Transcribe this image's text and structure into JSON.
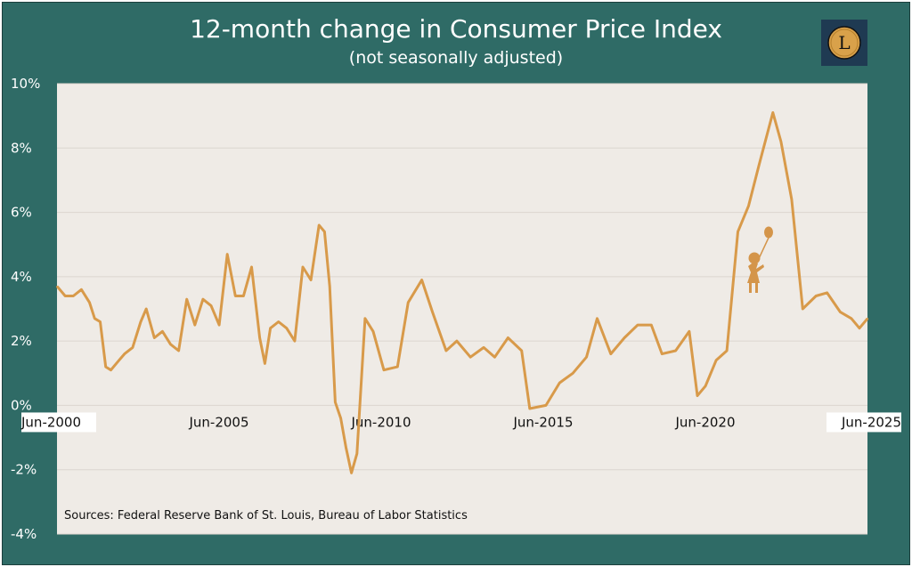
{
  "header": {
    "title": "12-month change in Consumer Price Index",
    "subtitle": "(not seasonally adjusted)",
    "logo_letter": "L"
  },
  "source_note": "Sources: Federal Reserve Bank of St. Louis, Bureau of Labor Statistics",
  "colors": {
    "frame": "#2f6b66",
    "plot_bg": "#efebe6",
    "line": "#d89a4a",
    "logo_bg": "#1f3a52",
    "logo_coin": "#d9a14a"
  },
  "icons": [
    "girl-with-balloon-icon",
    "logo-coin-icon"
  ],
  "chart_data": {
    "type": "line",
    "title": "12-month change in Consumer Price Index",
    "subtitle": "(not seasonally adjusted)",
    "xlabel": "",
    "ylabel": "",
    "x_ticks": [
      "Jun-2000",
      "Jun-2005",
      "Jun-2010",
      "Jun-2015",
      "Jun-2020",
      "Jun-2025"
    ],
    "y_ticks": [
      "10%",
      "8%",
      "6%",
      "4%",
      "2%",
      "0%",
      "-2%",
      "-4%"
    ],
    "ylim": [
      -4,
      10
    ],
    "xlim": [
      2000.417,
      2025.417
    ],
    "grid": "horizontal",
    "legend": "none",
    "series": [
      {
        "x": [
          2000.42,
          2000.67,
          2000.92,
          2001.17,
          2001.42,
          2001.58,
          2001.75,
          2001.92,
          2002.08,
          2002.33,
          2002.5,
          2002.75,
          2003.0,
          2003.17,
          2003.42,
          2003.67,
          2003.92,
          2004.17,
          2004.42,
          2004.67,
          2004.92,
          2005.17,
          2005.42,
          2005.67,
          2005.92,
          2006.17,
          2006.42,
          2006.67,
          2006.83,
          2007.0,
          2007.25,
          2007.5,
          2007.75,
          2008.0,
          2008.25,
          2008.5,
          2008.67,
          2008.83,
          2009.0,
          2009.17,
          2009.33,
          2009.5,
          2009.67,
          2009.92,
          2010.17,
          2010.5,
          2010.92,
          2011.25,
          2011.67,
          2012.0,
          2012.42,
          2012.75,
          2013.17,
          2013.58,
          2013.92,
          2014.33,
          2014.75,
          2015.0,
          2015.5,
          2015.92,
          2016.33,
          2016.75,
          2017.08,
          2017.5,
          2017.92,
          2018.33,
          2018.75,
          2019.08,
          2019.5,
          2019.92,
          2020.17,
          2020.42,
          2020.75,
          2021.08,
          2021.42,
          2021.75,
          2022.08,
          2022.5,
          2022.75,
          2023.08,
          2023.42,
          2023.83,
          2024.17,
          2024.58,
          2024.92,
          2025.17,
          2025.42
        ],
        "y": [
          3.7,
          3.4,
          3.4,
          3.6,
          3.2,
          2.7,
          2.6,
          1.2,
          1.1,
          1.4,
          1.6,
          1.8,
          2.6,
          3.0,
          2.1,
          2.3,
          1.9,
          1.7,
          3.3,
          2.5,
          3.3,
          3.1,
          2.5,
          4.7,
          3.4,
          3.4,
          4.3,
          2.1,
          1.3,
          2.4,
          2.6,
          2.4,
          2.0,
          4.3,
          3.9,
          5.6,
          5.4,
          3.7,
          0.1,
          -0.4,
          -1.3,
          -2.1,
          -1.5,
          2.7,
          2.3,
          1.1,
          1.2,
          3.2,
          3.9,
          2.9,
          1.7,
          2.0,
          1.5,
          1.8,
          1.5,
          2.1,
          1.7,
          -0.1,
          0.0,
          0.7,
          1.0,
          1.5,
          2.7,
          1.6,
          2.1,
          2.5,
          2.5,
          1.6,
          1.7,
          2.3,
          0.3,
          0.6,
          1.4,
          1.7,
          5.4,
          6.2,
          7.5,
          9.1,
          8.2,
          6.4,
          3.0,
          3.4,
          3.5,
          2.9,
          2.7,
          2.4,
          2.7
        ]
      }
    ],
    "annotations": [
      "Sources: Federal Reserve Bank of St. Louis, Bureau of Labor Statistics"
    ]
  }
}
